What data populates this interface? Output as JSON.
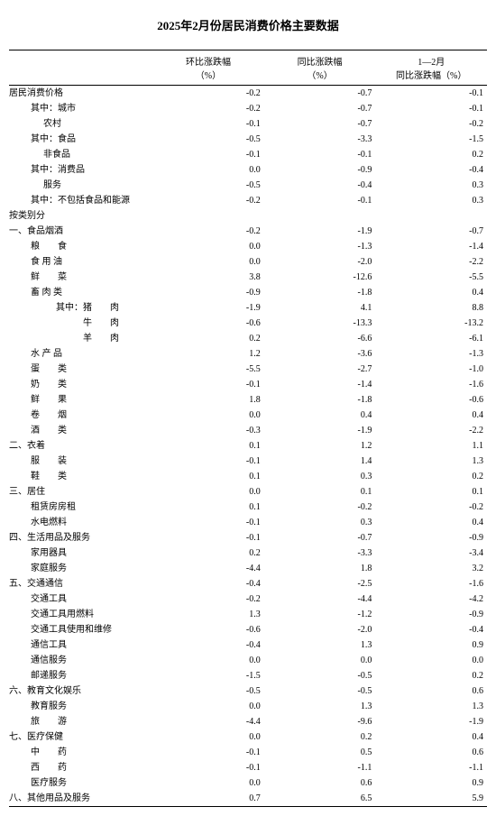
{
  "title": "2025年2月份居民消费价格主要数据",
  "columns": {
    "c1": "环比涨跌幅\n（%）",
    "c2": "同比涨跌幅\n（%）",
    "c3": "1—2月\n同比涨跌幅（%）"
  },
  "rows": [
    {
      "label": "居民消费价格",
      "indent": "i0",
      "v1": "-0.2",
      "v2": "-0.7",
      "v3": "-0.1"
    },
    {
      "label": "其中：城市",
      "indent": "i1",
      "v1": "-0.2",
      "v2": "-0.7",
      "v3": "-0.1"
    },
    {
      "label": "农村",
      "indent": "i2",
      "v1": "-0.1",
      "v2": "-0.7",
      "v3": "-0.2"
    },
    {
      "label": "其中：食品",
      "indent": "i1",
      "v1": "-0.5",
      "v2": "-3.3",
      "v3": "-1.5"
    },
    {
      "label": "非食品",
      "indent": "i2",
      "v1": "-0.1",
      "v2": "-0.1",
      "v3": "0.2"
    },
    {
      "label": "其中：消费品",
      "indent": "i1",
      "v1": "0.0",
      "v2": "-0.9",
      "v3": "-0.4"
    },
    {
      "label": "服务",
      "indent": "i2",
      "v1": "-0.5",
      "v2": "-0.4",
      "v3": "0.3"
    },
    {
      "label": "其中：不包括食品和能源",
      "indent": "i1",
      "v1": "-0.2",
      "v2": "-0.1",
      "v3": "0.3"
    },
    {
      "label": "按类别分",
      "indent": "i0",
      "v1": "",
      "v2": "",
      "v3": ""
    },
    {
      "label": "一、食品烟酒",
      "indent": "cat",
      "v1": "-0.2",
      "v2": "-1.9",
      "v3": "-0.7"
    },
    {
      "label": "粮　　食",
      "indent": "sub",
      "v1": "0.0",
      "v2": "-1.3",
      "v3": "-1.4"
    },
    {
      "label": "食 用 油",
      "indent": "sub",
      "v1": "0.0",
      "v2": "-2.0",
      "v3": "-2.2"
    },
    {
      "label": "鲜　　菜",
      "indent": "sub",
      "v1": "3.8",
      "v2": "-12.6",
      "v3": "-5.5"
    },
    {
      "label": "畜 肉 类",
      "indent": "sub",
      "v1": "-0.9",
      "v2": "-1.8",
      "v3": "0.4"
    },
    {
      "label": "其中：猪　　肉",
      "indent": "i3",
      "v1": "-1.9",
      "v2": "4.1",
      "v3": "8.8"
    },
    {
      "label": "牛　　肉",
      "indent": "i3",
      "v1": "-0.6",
      "pad": true,
      "v2": "-13.3",
      "v3": "-13.2"
    },
    {
      "label": "羊　　肉",
      "indent": "i3",
      "v1": "0.2",
      "pad": true,
      "v2": "-6.6",
      "v3": "-6.1"
    },
    {
      "label": "水 产 品",
      "indent": "sub",
      "v1": "1.2",
      "v2": "-3.6",
      "v3": "-1.3"
    },
    {
      "label": "蛋　　类",
      "indent": "sub",
      "v1": "-5.5",
      "v2": "-2.7",
      "v3": "-1.0"
    },
    {
      "label": "奶　　类",
      "indent": "sub",
      "v1": "-0.1",
      "v2": "-1.4",
      "v3": "-1.6"
    },
    {
      "label": "鲜　　果",
      "indent": "sub",
      "v1": "1.8",
      "v2": "-1.8",
      "v3": "-0.6"
    },
    {
      "label": "卷　　烟",
      "indent": "sub",
      "v1": "0.0",
      "v2": "0.4",
      "v3": "0.4"
    },
    {
      "label": "酒　　类",
      "indent": "sub",
      "v1": "-0.3",
      "v2": "-1.9",
      "v3": "-2.2"
    },
    {
      "label": "二、衣着",
      "indent": "cat",
      "v1": "0.1",
      "v2": "1.2",
      "v3": "1.1"
    },
    {
      "label": "服　　装",
      "indent": "sub",
      "v1": "-0.1",
      "v2": "1.4",
      "v3": "1.3"
    },
    {
      "label": "鞋　　类",
      "indent": "sub",
      "v1": "0.1",
      "v2": "0.3",
      "v3": "0.2"
    },
    {
      "label": "三、居住",
      "indent": "cat",
      "v1": "0.0",
      "v2": "0.1",
      "v3": "0.1"
    },
    {
      "label": "租赁房房租",
      "indent": "sub",
      "v1": "0.1",
      "v2": "-0.2",
      "v3": "-0.2"
    },
    {
      "label": "水电燃料",
      "indent": "sub",
      "v1": "-0.1",
      "v2": "0.3",
      "v3": "0.4"
    },
    {
      "label": "四、生活用品及服务",
      "indent": "cat",
      "v1": "-0.1",
      "v2": "-0.7",
      "v3": "-0.9"
    },
    {
      "label": "家用器具",
      "indent": "sub",
      "v1": "0.2",
      "v2": "-3.3",
      "v3": "-3.4"
    },
    {
      "label": "家庭服务",
      "indent": "sub",
      "v1": "-4.4",
      "v2": "1.8",
      "v3": "3.2"
    },
    {
      "label": "五、交通通信",
      "indent": "cat",
      "v1": "-0.4",
      "v2": "-2.5",
      "v3": "-1.6"
    },
    {
      "label": "交通工具",
      "indent": "sub",
      "v1": "-0.2",
      "v2": "-4.4",
      "v3": "-4.2"
    },
    {
      "label": "交通工具用燃料",
      "indent": "sub",
      "v1": "1.3",
      "v2": "-1.2",
      "v3": "-0.9"
    },
    {
      "label": "交通工具使用和维修",
      "indent": "sub",
      "v1": "-0.6",
      "v2": "-2.0",
      "v3": "-0.4"
    },
    {
      "label": "通信工具",
      "indent": "sub",
      "v1": "-0.4",
      "v2": "1.3",
      "v3": "0.9"
    },
    {
      "label": "通信服务",
      "indent": "sub",
      "v1": "0.0",
      "v2": "0.0",
      "v3": "0.0"
    },
    {
      "label": "邮递服务",
      "indent": "sub",
      "v1": "-1.5",
      "v2": "-0.5",
      "v3": "0.2"
    },
    {
      "label": "六、教育文化娱乐",
      "indent": "cat",
      "v1": "-0.5",
      "v2": "-0.5",
      "v3": "0.6"
    },
    {
      "label": "教育服务",
      "indent": "sub",
      "v1": "0.0",
      "v2": "1.3",
      "v3": "1.3"
    },
    {
      "label": "旅　　游",
      "indent": "sub",
      "v1": "-4.4",
      "v2": "-9.6",
      "v3": "-1.9"
    },
    {
      "label": "七、医疗保健",
      "indent": "cat",
      "v1": "0.0",
      "v2": "0.2",
      "v3": "0.4"
    },
    {
      "label": "中　　药",
      "indent": "sub",
      "v1": "-0.1",
      "v2": "0.5",
      "v3": "0.6"
    },
    {
      "label": "西　　药",
      "indent": "sub",
      "v1": "-0.1",
      "v2": "-1.1",
      "v3": "-1.1"
    },
    {
      "label": "医疗服务",
      "indent": "sub",
      "v1": "0.0",
      "v2": "0.6",
      "v3": "0.9"
    },
    {
      "label": "八、其他用品及服务",
      "indent": "cat",
      "v1": "0.7",
      "v2": "6.5",
      "v3": "5.9",
      "last": true
    }
  ]
}
